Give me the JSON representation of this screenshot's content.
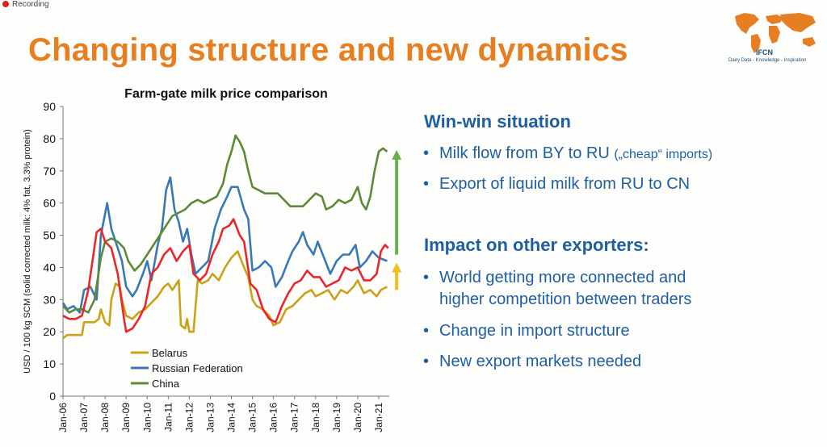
{
  "recording": "Recording",
  "slide": {
    "title": "Changing structure and new dynamics"
  },
  "logo": {
    "name": "IFCN",
    "tagline": "Dairy Data - Knowledge - Inspiration"
  },
  "right_panel": {
    "heading1": "Win-win situation",
    "bullets1": [
      {
        "text": "Milk flow from BY to RU ",
        "small": "(„cheap“ imports)"
      },
      {
        "text": "Export of liquid milk from RU to CN",
        "small": ""
      }
    ],
    "heading2": "Impact on other exporters:",
    "bullets2": [
      {
        "line1": "World getting more connected and",
        "line2": "higher competition between traders"
      },
      {
        "line1": "Change in import structure",
        "line2": ""
      },
      {
        "line1": "New export markets needed",
        "line2": ""
      }
    ],
    "bullet_char": "•"
  },
  "colors": {
    "title": "#e67e22",
    "text": "#1f5fa0",
    "belarus": "#c9a21a",
    "russia": "#3a78b5",
    "china": "#5c8a3a",
    "red": "#e8262b",
    "arrow_green": "#6ab04c",
    "arrow_yellow": "#f0c020"
  },
  "chart_data": {
    "type": "line",
    "title": "Farm-gate milk price comparison",
    "ylabel": "USD / 100 kg SCM (solid corrected milk: 4% fat, 3.3% protein)",
    "xlabel": "",
    "ylim": [
      0,
      90
    ],
    "yticks": [
      0,
      10,
      20,
      30,
      40,
      50,
      60,
      70,
      80,
      90
    ],
    "xticks": [
      "Jan-06",
      "Jan-07",
      "Jan-08",
      "Jan-09",
      "Jan-10",
      "Jan-11",
      "Jan-12",
      "Jan-13",
      "Jan-14",
      "Jan-15",
      "Jan-16",
      "Jan-17",
      "Jan-18",
      "Jan-19",
      "Jan-20",
      "Jan-21"
    ],
    "x_start": 2006.0,
    "x_end": 2021.5,
    "legend_position": "bottom-left",
    "grid": false,
    "series": [
      {
        "name": "Belarus",
        "color": "#c9a21a",
        "points": [
          [
            2006.0,
            18
          ],
          [
            2006.2,
            19
          ],
          [
            2006.6,
            19
          ],
          [
            2006.9,
            19
          ],
          [
            2007.0,
            23
          ],
          [
            2007.5,
            23
          ],
          [
            2007.7,
            24
          ],
          [
            2007.8,
            27
          ],
          [
            2008.0,
            23
          ],
          [
            2008.2,
            22
          ],
          [
            2008.3,
            30
          ],
          [
            2008.5,
            35
          ],
          [
            2008.7,
            34
          ],
          [
            2008.8,
            30
          ],
          [
            2009.0,
            25
          ],
          [
            2009.3,
            24
          ],
          [
            2009.6,
            26
          ],
          [
            2009.9,
            27
          ],
          [
            2010.2,
            29
          ],
          [
            2010.5,
            31
          ],
          [
            2010.8,
            34
          ],
          [
            2011.0,
            35
          ],
          [
            2011.2,
            33
          ],
          [
            2011.5,
            36
          ],
          [
            2011.6,
            22
          ],
          [
            2011.8,
            21
          ],
          [
            2011.9,
            24
          ],
          [
            2012.0,
            20
          ],
          [
            2012.2,
            20
          ],
          [
            2012.3,
            28
          ],
          [
            2012.4,
            36
          ],
          [
            2012.6,
            35
          ],
          [
            2012.9,
            36
          ],
          [
            2013.1,
            38
          ],
          [
            2013.4,
            36
          ],
          [
            2013.7,
            40
          ],
          [
            2014.0,
            43
          ],
          [
            2014.3,
            45
          ],
          [
            2014.6,
            40
          ],
          [
            2014.8,
            37
          ],
          [
            2015.0,
            30
          ],
          [
            2015.2,
            28
          ],
          [
            2015.5,
            27
          ],
          [
            2015.8,
            25
          ],
          [
            2016.0,
            22
          ],
          [
            2016.3,
            23
          ],
          [
            2016.6,
            27
          ],
          [
            2016.9,
            28
          ],
          [
            2017.2,
            30
          ],
          [
            2017.5,
            32
          ],
          [
            2017.8,
            33
          ],
          [
            2018.0,
            31
          ],
          [
            2018.3,
            32
          ],
          [
            2018.6,
            33
          ],
          [
            2018.9,
            30
          ],
          [
            2019.2,
            33
          ],
          [
            2019.5,
            32
          ],
          [
            2019.8,
            34
          ],
          [
            2020.0,
            36
          ],
          [
            2020.3,
            32
          ],
          [
            2020.6,
            33
          ],
          [
            2020.9,
            31
          ],
          [
            2021.1,
            33
          ],
          [
            2021.4,
            34
          ]
        ]
      },
      {
        "name": "Russian Federation",
        "color": "#3a78b5",
        "points": [
          [
            2006.0,
            29
          ],
          [
            2006.2,
            27
          ],
          [
            2006.5,
            28
          ],
          [
            2006.8,
            26
          ],
          [
            2007.0,
            33
          ],
          [
            2007.3,
            34
          ],
          [
            2007.6,
            30
          ],
          [
            2007.8,
            50
          ],
          [
            2008.1,
            60
          ],
          [
            2008.3,
            52
          ],
          [
            2008.5,
            48
          ],
          [
            2008.8,
            42
          ],
          [
            2009.0,
            34
          ],
          [
            2009.3,
            31
          ],
          [
            2009.5,
            33
          ],
          [
            2009.8,
            38
          ],
          [
            2010.0,
            42
          ],
          [
            2010.2,
            36
          ],
          [
            2010.5,
            47
          ],
          [
            2010.7,
            52
          ],
          [
            2010.9,
            64
          ],
          [
            2011.1,
            68
          ],
          [
            2011.3,
            58
          ],
          [
            2011.5,
            54
          ],
          [
            2011.7,
            48
          ],
          [
            2011.9,
            52
          ],
          [
            2012.1,
            44
          ],
          [
            2012.3,
            38
          ],
          [
            2012.6,
            40
          ],
          [
            2012.9,
            42
          ],
          [
            2013.2,
            52
          ],
          [
            2013.5,
            58
          ],
          [
            2013.8,
            62
          ],
          [
            2014.0,
            65
          ],
          [
            2014.3,
            65
          ],
          [
            2014.6,
            58
          ],
          [
            2014.8,
            55
          ],
          [
            2015.0,
            39
          ],
          [
            2015.3,
            40
          ],
          [
            2015.6,
            42
          ],
          [
            2015.9,
            40
          ],
          [
            2016.1,
            34
          ],
          [
            2016.4,
            37
          ],
          [
            2016.7,
            42
          ],
          [
            2016.9,
            45
          ],
          [
            2017.2,
            48
          ],
          [
            2017.4,
            51
          ],
          [
            2017.6,
            47
          ],
          [
            2017.9,
            44
          ],
          [
            2018.1,
            48
          ],
          [
            2018.4,
            43
          ],
          [
            2018.7,
            38
          ],
          [
            2019.0,
            42
          ],
          [
            2019.3,
            44
          ],
          [
            2019.6,
            44
          ],
          [
            2019.9,
            47
          ],
          [
            2020.1,
            40
          ],
          [
            2020.4,
            42
          ],
          [
            2020.7,
            45
          ],
          [
            2021.0,
            43
          ],
          [
            2021.4,
            42
          ]
        ]
      },
      {
        "name": "China",
        "color": "#5c8a3a",
        "points": [
          [
            2006.0,
            28
          ],
          [
            2006.3,
            26
          ],
          [
            2006.6,
            27
          ],
          [
            2006.9,
            27
          ],
          [
            2007.2,
            26
          ],
          [
            2007.5,
            30
          ],
          [
            2007.8,
            43
          ],
          [
            2008.0,
            48
          ],
          [
            2008.3,
            49
          ],
          [
            2008.6,
            48
          ],
          [
            2008.9,
            46
          ],
          [
            2009.1,
            42
          ],
          [
            2009.4,
            39
          ],
          [
            2009.7,
            41
          ],
          [
            2010.0,
            44
          ],
          [
            2010.3,
            47
          ],
          [
            2010.6,
            50
          ],
          [
            2010.9,
            53
          ],
          [
            2011.2,
            56
          ],
          [
            2011.5,
            57
          ],
          [
            2011.8,
            58
          ],
          [
            2012.1,
            60
          ],
          [
            2012.4,
            61
          ],
          [
            2012.7,
            60
          ],
          [
            2013.0,
            61
          ],
          [
            2013.3,
            62
          ],
          [
            2013.6,
            66
          ],
          [
            2013.8,
            72
          ],
          [
            2014.0,
            76
          ],
          [
            2014.2,
            81
          ],
          [
            2014.4,
            79
          ],
          [
            2014.6,
            76
          ],
          [
            2014.8,
            70
          ],
          [
            2015.0,
            65
          ],
          [
            2015.3,
            64
          ],
          [
            2015.6,
            63
          ],
          [
            2015.9,
            63
          ],
          [
            2016.2,
            63
          ],
          [
            2016.5,
            61
          ],
          [
            2016.8,
            59
          ],
          [
            2017.1,
            59
          ],
          [
            2017.4,
            59
          ],
          [
            2017.7,
            61
          ],
          [
            2018.0,
            63
          ],
          [
            2018.3,
            62
          ],
          [
            2018.5,
            58
          ],
          [
            2018.8,
            59
          ],
          [
            2019.1,
            61
          ],
          [
            2019.4,
            60
          ],
          [
            2019.7,
            61
          ],
          [
            2020.0,
            65
          ],
          [
            2020.2,
            60
          ],
          [
            2020.4,
            58
          ],
          [
            2020.6,
            62
          ],
          [
            2020.8,
            70
          ],
          [
            2021.0,
            76
          ],
          [
            2021.2,
            77
          ],
          [
            2021.4,
            76
          ]
        ]
      },
      {
        "name": "",
        "color": "#e8262b",
        "points": [
          [
            2006.0,
            25
          ],
          [
            2006.3,
            24
          ],
          [
            2006.6,
            24
          ],
          [
            2006.9,
            25
          ],
          [
            2007.2,
            33
          ],
          [
            2007.4,
            42
          ],
          [
            2007.6,
            51
          ],
          [
            2007.8,
            52
          ],
          [
            2008.0,
            48
          ],
          [
            2008.3,
            46
          ],
          [
            2008.6,
            38
          ],
          [
            2008.9,
            24
          ],
          [
            2009.0,
            20
          ],
          [
            2009.3,
            21
          ],
          [
            2009.6,
            24
          ],
          [
            2009.9,
            28
          ],
          [
            2010.2,
            38
          ],
          [
            2010.5,
            40
          ],
          [
            2010.8,
            44
          ],
          [
            2011.1,
            46
          ],
          [
            2011.4,
            42
          ],
          [
            2011.7,
            45
          ],
          [
            2012.0,
            47
          ],
          [
            2012.2,
            38
          ],
          [
            2012.5,
            36
          ],
          [
            2012.8,
            38
          ],
          [
            2013.1,
            44
          ],
          [
            2013.4,
            48
          ],
          [
            2013.6,
            52
          ],
          [
            2013.9,
            53
          ],
          [
            2014.1,
            55
          ],
          [
            2014.4,
            50
          ],
          [
            2014.6,
            48
          ],
          [
            2014.9,
            35
          ],
          [
            2015.2,
            33
          ],
          [
            2015.5,
            27
          ],
          [
            2015.8,
            24
          ],
          [
            2016.1,
            23
          ],
          [
            2016.4,
            28
          ],
          [
            2016.7,
            32
          ],
          [
            2017.0,
            35
          ],
          [
            2017.3,
            36
          ],
          [
            2017.6,
            39
          ],
          [
            2017.9,
            37
          ],
          [
            2018.2,
            37
          ],
          [
            2018.5,
            34
          ],
          [
            2018.8,
            35
          ],
          [
            2019.1,
            36
          ],
          [
            2019.4,
            40
          ],
          [
            2019.7,
            39
          ],
          [
            2020.0,
            40
          ],
          [
            2020.3,
            36
          ],
          [
            2020.6,
            36
          ],
          [
            2020.9,
            38
          ],
          [
            2021.1,
            45
          ],
          [
            2021.3,
            47
          ],
          [
            2021.45,
            46
          ]
        ]
      }
    ],
    "annotations": [
      {
        "kind": "arrow",
        "color": "#6ab04c",
        "x": 2021.85,
        "from": 44,
        "to": 76
      },
      {
        "kind": "arrow",
        "color": "#f0c020",
        "x": 2021.85,
        "from": 33,
        "to": 41
      }
    ]
  }
}
